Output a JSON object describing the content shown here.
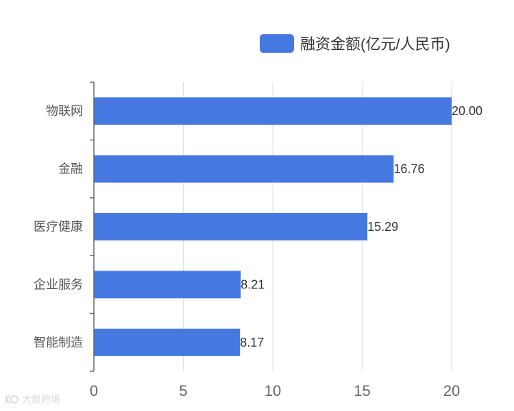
{
  "chart_data": {
    "type": "bar",
    "orientation": "horizontal",
    "categories": [
      "物联网",
      "金融",
      "医疗健康",
      "企业服务",
      "智能制造"
    ],
    "series": [
      {
        "name": "融资金额(亿元/人民币)",
        "values": [
          20.0,
          16.76,
          15.29,
          8.21,
          8.17
        ],
        "data_labels": [
          "20.00",
          "16.76",
          "15.29",
          "8.21",
          "8.17"
        ]
      }
    ],
    "x_ticks": [
      "0",
      "5",
      "10",
      "15",
      "20"
    ],
    "xlim": [
      0,
      20
    ],
    "grid": "vertical",
    "legend_position": "top-right",
    "colors": {
      "bar": "#4678E1",
      "grid": "#D9DEE8",
      "axis": "#666666"
    }
  },
  "watermark": {
    "text": "大数跨境",
    "icon": "kr-logo-icon"
  }
}
